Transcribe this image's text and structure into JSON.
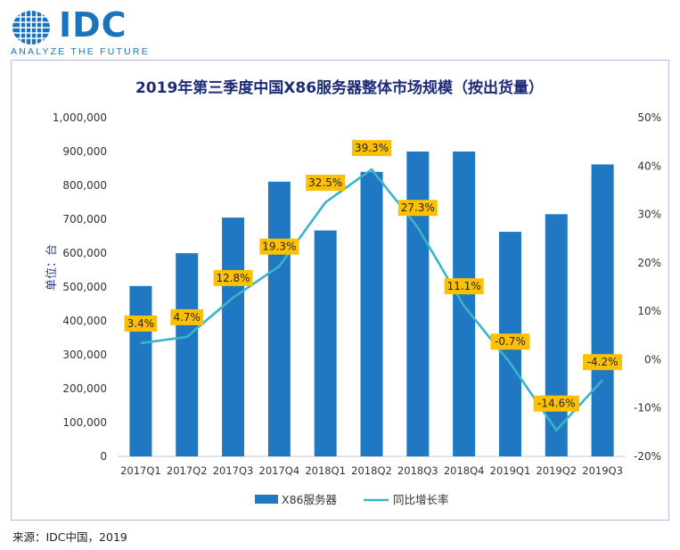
{
  "logo": {
    "wordmark": "IDC",
    "tagline": "ANALYZE THE FUTURE",
    "brand_color": "#1b74bb"
  },
  "source": "来源：IDC中国，2019",
  "chart_data": {
    "type": "bar",
    "title": "2019年第三季度中国X86服务器整体市场规模（按出货量）",
    "ylabel": "单位：台",
    "categories": [
      "2017Q1",
      "2017Q2",
      "2017Q3",
      "2017Q4",
      "2018Q1",
      "2018Q2",
      "2018Q3",
      "2018Q4",
      "2019Q1",
      "2019Q2",
      "2019Q3"
    ],
    "ylim": [
      0,
      1000000
    ],
    "yticks": [
      0,
      100000,
      200000,
      300000,
      400000,
      500000,
      600000,
      700000,
      800000,
      900000,
      1000000
    ],
    "ytick_labels": [
      "0",
      "100,000",
      "200,000",
      "300,000",
      "400,000",
      "500,000",
      "600,000",
      "700,000",
      "800,000",
      "900,000",
      "1,000,000"
    ],
    "y2lim": [
      -20,
      50
    ],
    "y2ticks": [
      -20,
      -10,
      0,
      10,
      20,
      30,
      40,
      50
    ],
    "y2tick_labels": [
      "-20%",
      "-10%",
      "0%",
      "10%",
      "20%",
      "30%",
      "40%",
      "50%"
    ],
    "series": [
      {
        "name": "X86服务器",
        "type": "bar",
        "axis": "left",
        "color": "#1f78c1",
        "values": [
          503000,
          600000,
          705000,
          811000,
          667000,
          840000,
          900000,
          900000,
          663000,
          715000,
          862000
        ]
      },
      {
        "name": "同比增长率",
        "type": "line",
        "axis": "right",
        "color": "#3ab4c7",
        "values": [
          3.4,
          4.7,
          12.8,
          19.3,
          32.5,
          39.3,
          27.3,
          11.1,
          -0.7,
          -14.6,
          -4.2
        ],
        "labels": [
          "3.4%",
          "4.7%",
          "12.8%",
          "19.3%",
          "32.5%",
          "39.3%",
          "27.3%",
          "11.1%",
          "-0.7%",
          "-14.6%",
          "-4.2%"
        ]
      }
    ],
    "label_box_color": "#ffc000",
    "grid": false,
    "legend_position": "bottom"
  }
}
